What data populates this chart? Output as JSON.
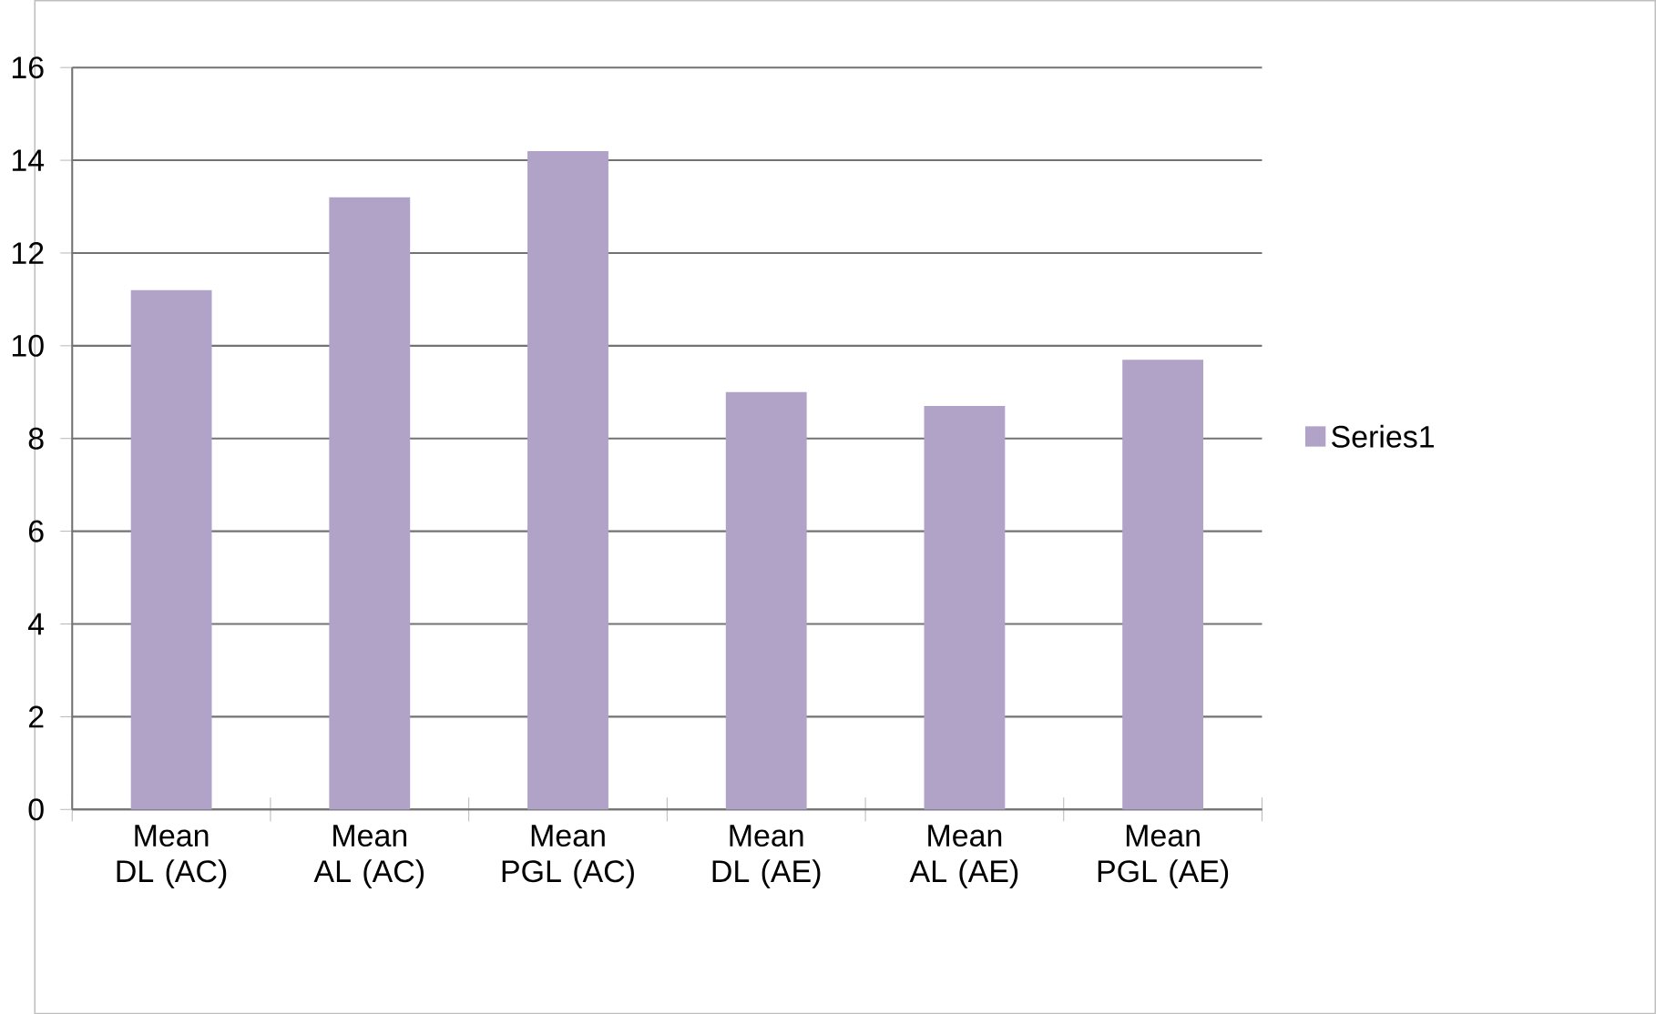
{
  "chart_data": {
    "type": "bar",
    "categories": [
      "Mean DL (AC)",
      "Mean AL (AC)",
      "Mean PGL (AC)",
      "Mean DL (AE)",
      "Mean AL (AE)",
      "Mean PGL (AE)"
    ],
    "series": [
      {
        "name": "Series1",
        "color": "#b1a2c7",
        "values": [
          11.2,
          13.2,
          14.2,
          9.0,
          8.7,
          9.7
        ]
      }
    ],
    "ylim": [
      0,
      16
    ],
    "yticks": [
      0,
      2,
      4,
      6,
      8,
      10,
      12,
      14,
      16
    ],
    "grid": "y",
    "legend": "right"
  }
}
